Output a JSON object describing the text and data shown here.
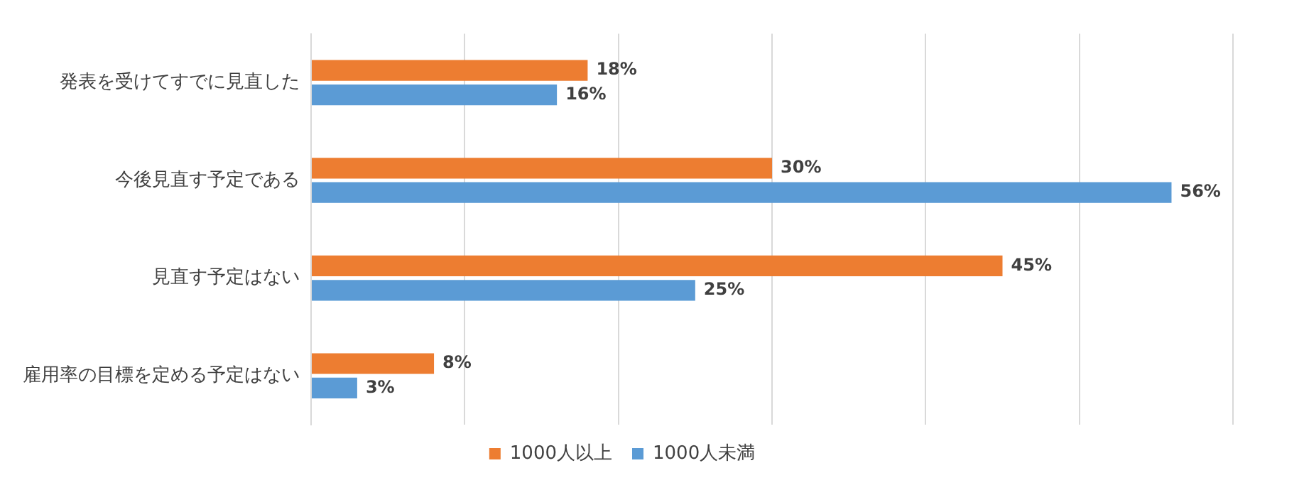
{
  "chart_data": {
    "type": "bar",
    "orientation": "horizontal",
    "categories": [
      "発表を受けてすでに見直した",
      "今後見直す予定である",
      "見直す予定はない",
      "雇用率の目標を定める予定はない"
    ],
    "series": [
      {
        "name": "1000人以上",
        "color": "#ed7d31",
        "values": [
          18,
          30,
          45,
          8
        ],
        "value_labels": [
          "18%",
          "30%",
          "45%",
          "8%"
        ]
      },
      {
        "name": "1000人未満",
        "color": "#5b9bd5",
        "values": [
          16,
          56,
          25,
          3
        ],
        "value_labels": [
          "16%",
          "56%",
          "25%",
          "3%"
        ]
      }
    ],
    "xlim": [
      0,
      60
    ],
    "xticks": [
      {
        "value": 0,
        "label": null
      },
      {
        "value": 10,
        "label": null
      },
      {
        "value": 20,
        "label": null
      },
      {
        "value": 30,
        "label": null
      },
      {
        "value": 40,
        "label": null
      },
      {
        "value": 50,
        "label": null
      },
      {
        "value": 60,
        "label": null
      }
    ],
    "tick_labels": "y",
    "grid": "x",
    "legend": "bottom"
  }
}
